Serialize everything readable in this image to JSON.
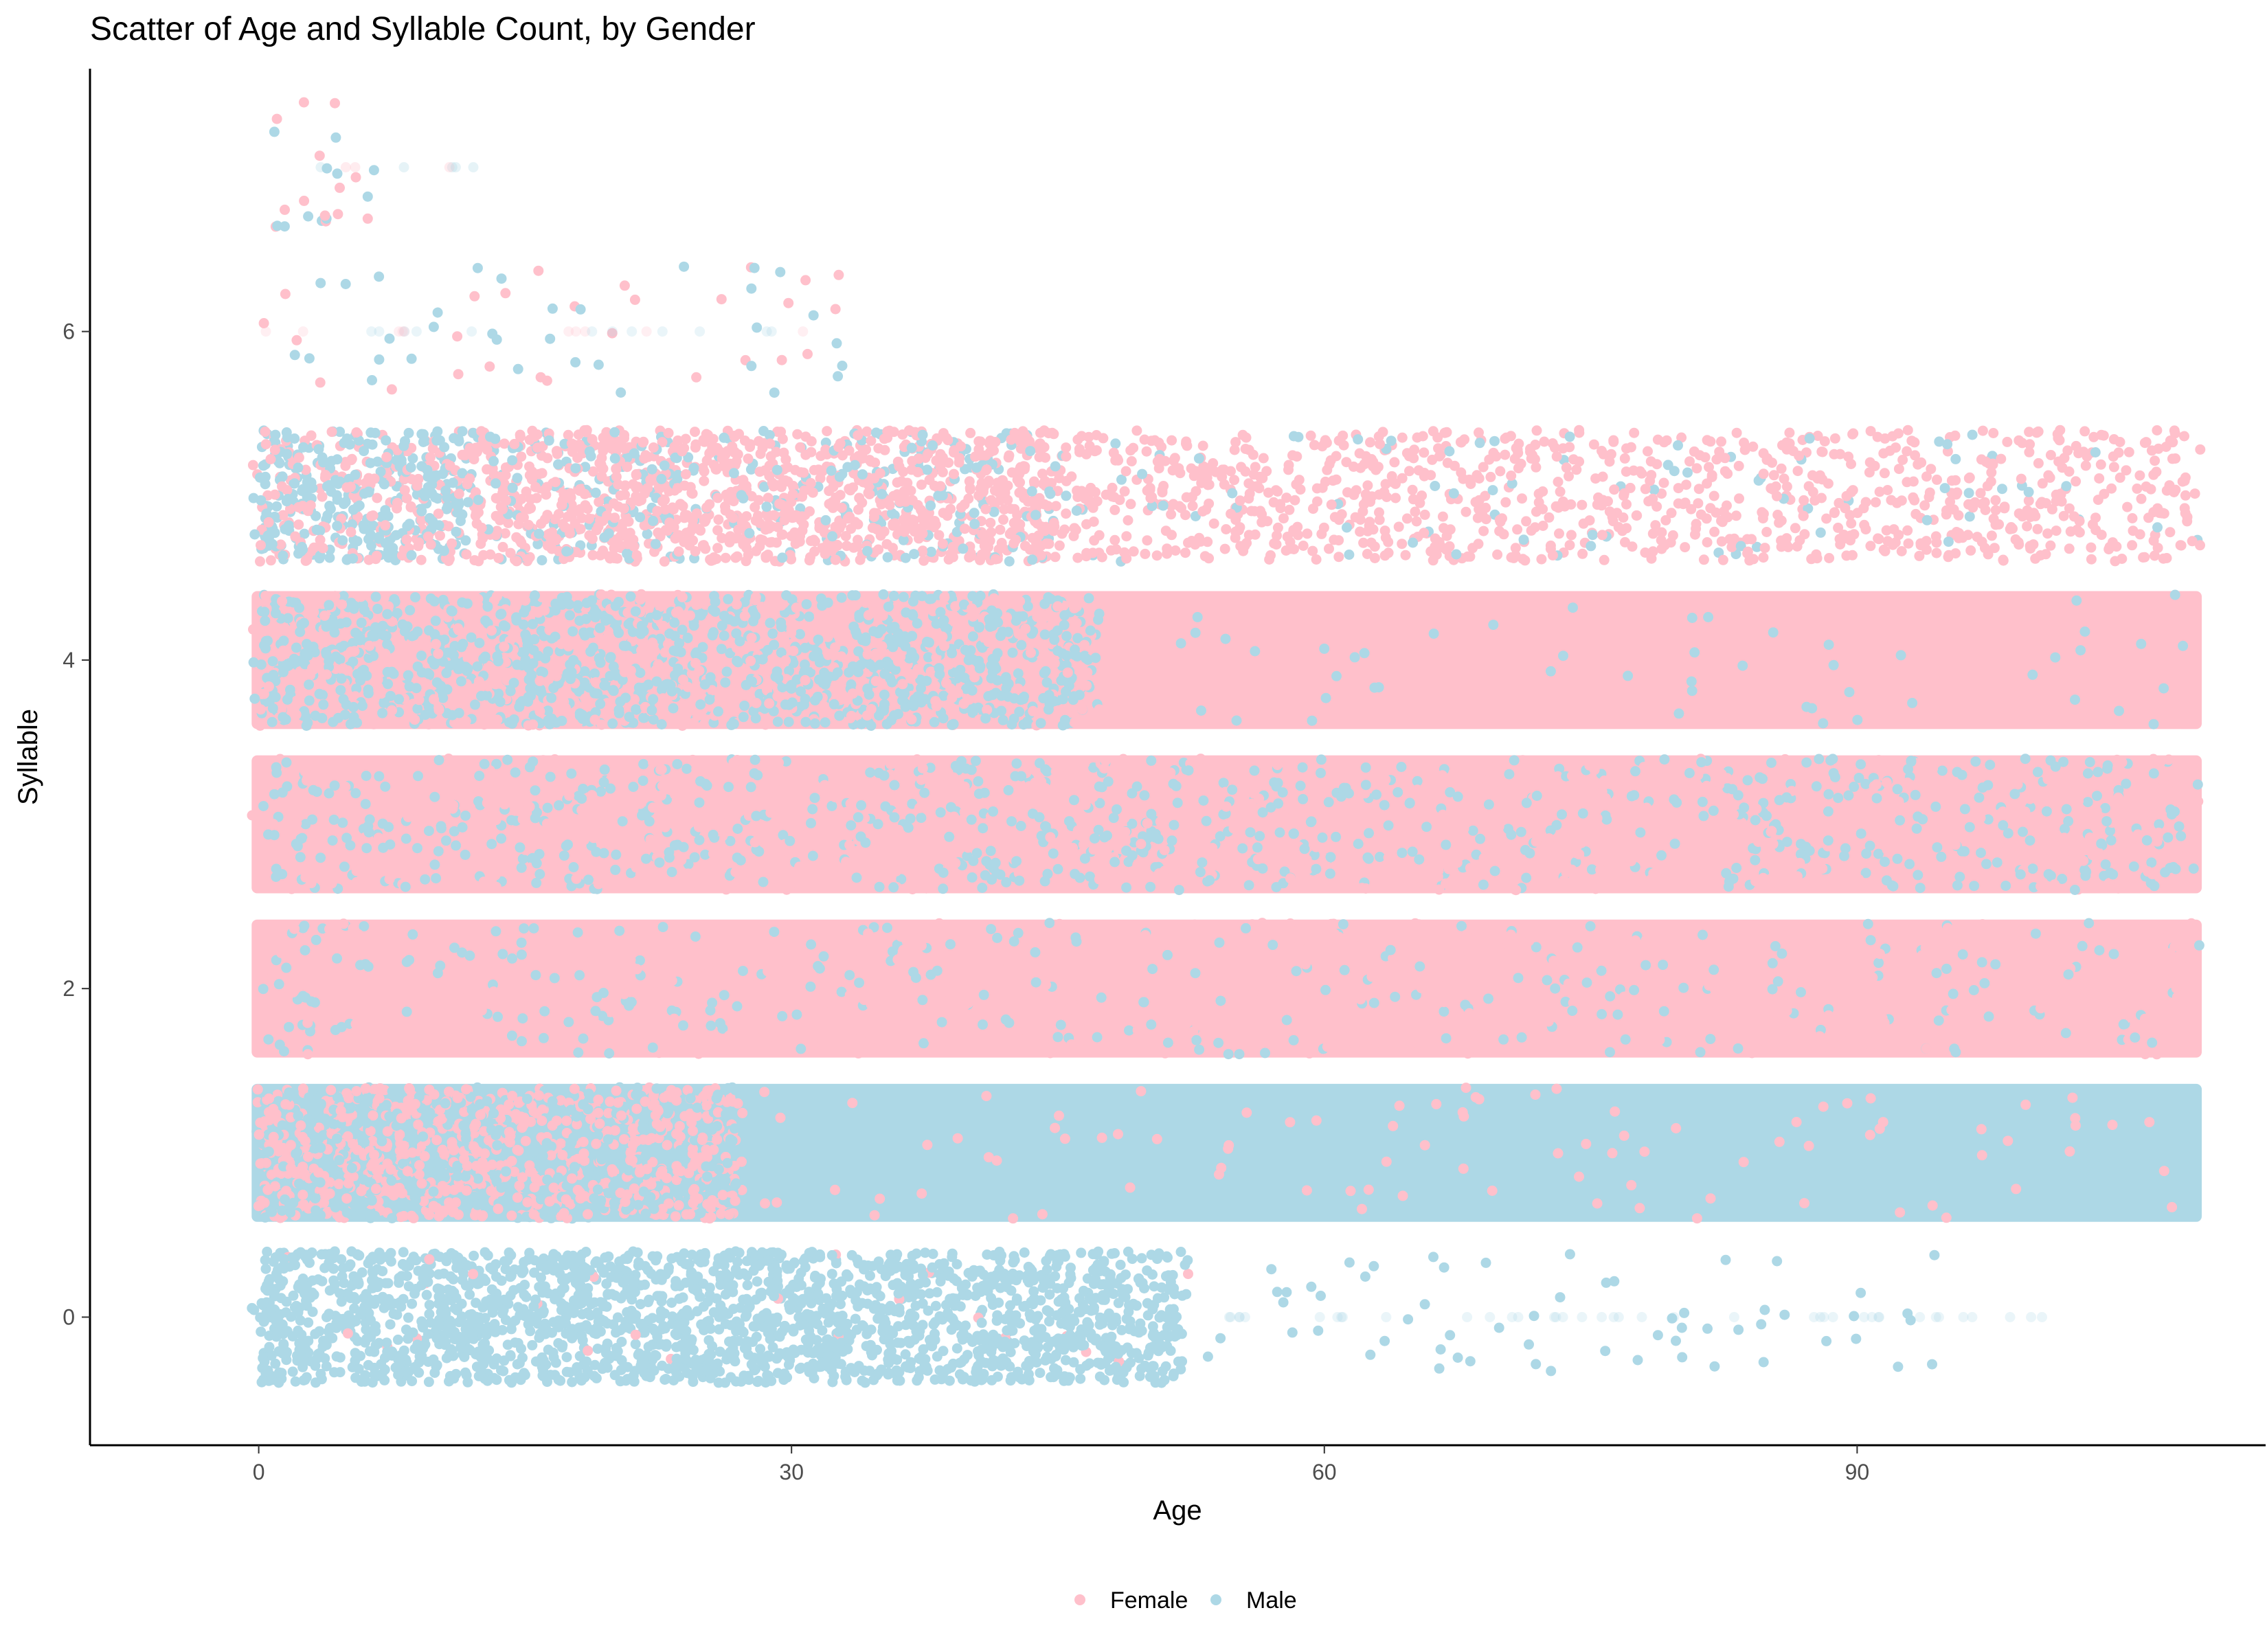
{
  "chart_data": {
    "type": "scatter",
    "title": "Scatter of Age and Syllable Count, by Gender",
    "xlabel": "Age",
    "ylabel": "Syllable",
    "xlim": [
      -9.5,
      113
    ],
    "ylim": [
      -0.78,
      7.6
    ],
    "x_ticks": [
      0,
      30,
      60,
      90
    ],
    "y_ticks": [
      0,
      2,
      4,
      6
    ],
    "x_tick_labels": [
      "0",
      "30",
      "60",
      "90"
    ],
    "y_tick_labels": [
      "0",
      "2",
      "4",
      "6"
    ],
    "grid": false,
    "legend_position": "bottom",
    "jitter": {
      "x": 0.4,
      "y": 0.4
    },
    "series": [
      {
        "name": "Female",
        "color": "#FFC0CB",
        "syllable_bands": [
          {
            "syllable": 0,
            "age_range": [
              0,
              45
            ],
            "density": "very sparse"
          },
          {
            "syllable": 1,
            "age_range": [
              0,
              109
            ],
            "density": "dense for ages 0-27, sparse above"
          },
          {
            "syllable": 2,
            "age_range": [
              0,
              109
            ],
            "density": "dominant"
          },
          {
            "syllable": 3,
            "age_range": [
              0,
              109
            ],
            "density": "dense"
          },
          {
            "syllable": 4,
            "age_range": [
              0,
              109
            ],
            "density": "dense for ages 0-47, dominant above 47"
          },
          {
            "syllable": 5,
            "age_range": [
              0,
              109
            ],
            "density": "dense to age 45, moderate above"
          },
          {
            "syllable": 6,
            "age_range": [
              0,
              33
            ],
            "density": "sparse"
          },
          {
            "syllable": 7,
            "age_range": [
              0,
              7
            ],
            "density": "sparse"
          }
        ]
      },
      {
        "name": "Male",
        "color": "#ADD8E6",
        "syllable_bands": [
          {
            "syllable": 0,
            "age_range": [
              0,
              95
            ],
            "density": "dense to age 52, sparse above"
          },
          {
            "syllable": 1,
            "age_range": [
              0,
              109
            ],
            "density": "dense for ages 0-27, dominant above 27"
          },
          {
            "syllable": 2,
            "age_range": [
              0,
              109
            ],
            "density": "moderate"
          },
          {
            "syllable": 3,
            "age_range": [
              0,
              109
            ],
            "density": "dense"
          },
          {
            "syllable": 4,
            "age_range": [
              0,
              109
            ],
            "density": "dominant to age 47, sparse above"
          },
          {
            "syllable": 5,
            "age_range": [
              0,
              100
            ],
            "density": "dense to age 12, sparse above"
          },
          {
            "syllable": 6,
            "age_range": [
              0,
              31
            ],
            "density": "sparse"
          },
          {
            "syllable": 7,
            "age_range": [
              0,
              13
            ],
            "density": "sparse"
          }
        ]
      }
    ]
  }
}
